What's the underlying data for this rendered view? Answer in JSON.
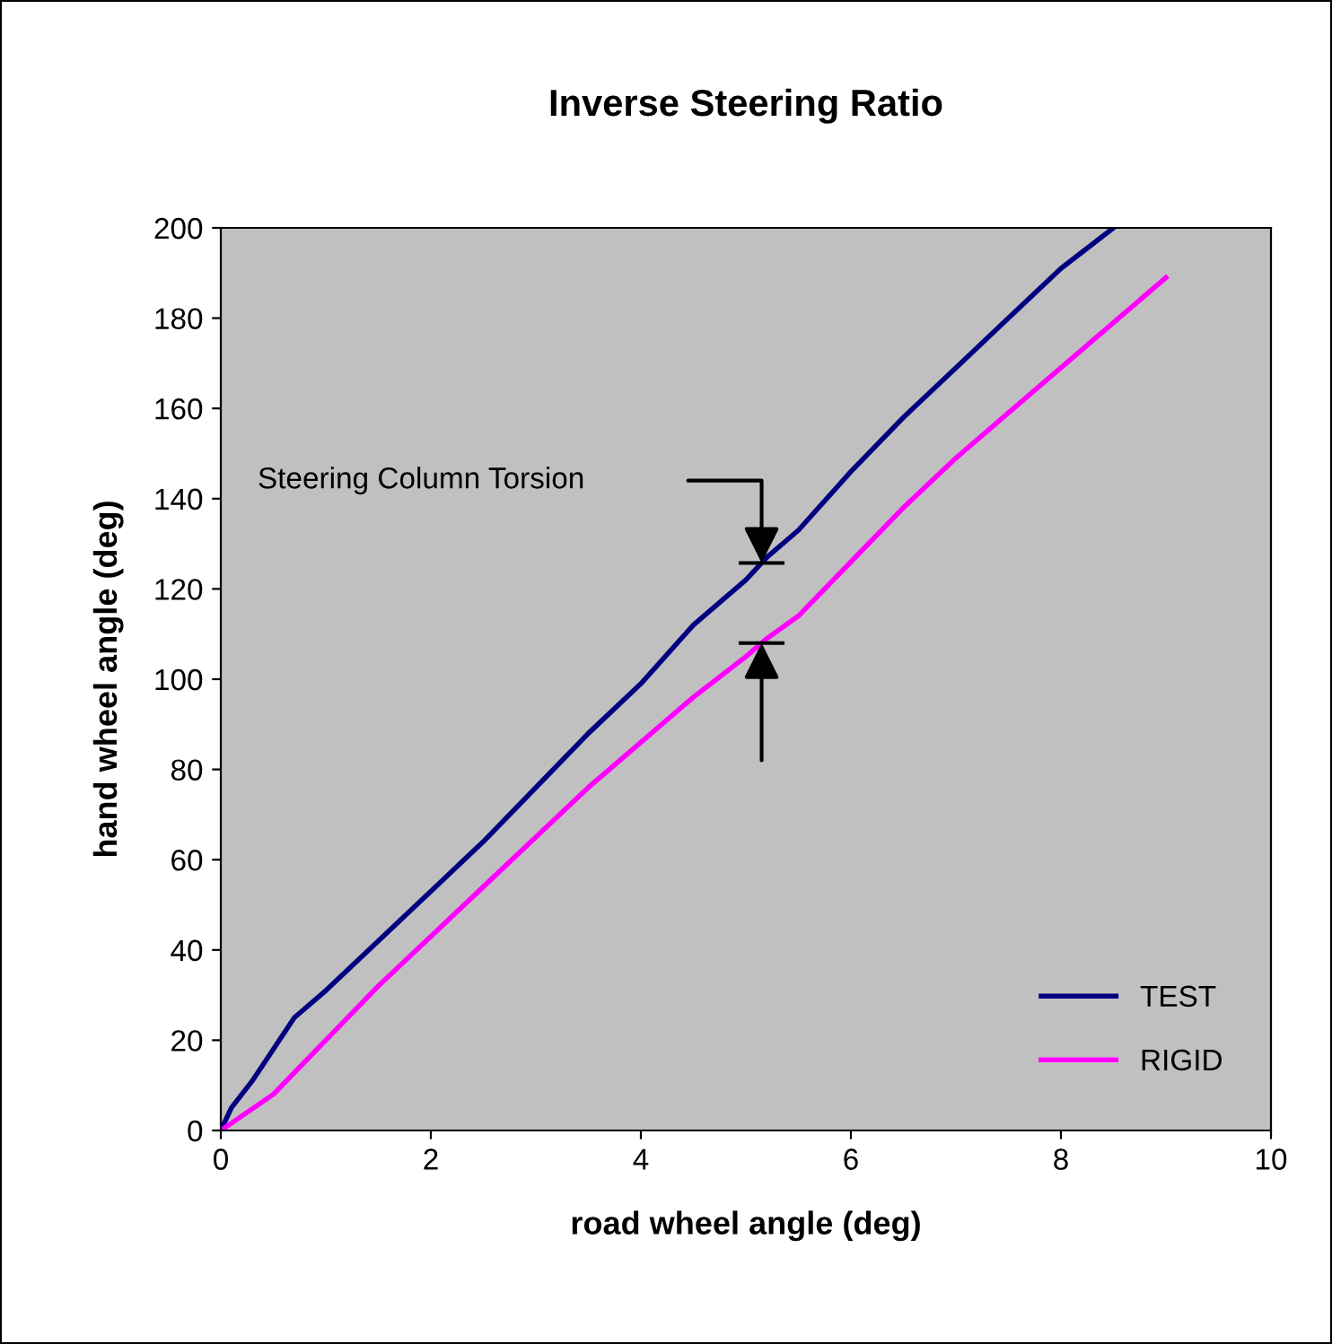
{
  "chart_data": {
    "type": "line",
    "title": "Inverse Steering Ratio",
    "xlabel": "road wheel angle (deg)",
    "ylabel": "hand wheel angle (deg)",
    "xlim": [
      0,
      10
    ],
    "ylim": [
      0,
      200
    ],
    "xticks": [
      0,
      2,
      4,
      6,
      8,
      10
    ],
    "yticks": [
      0,
      20,
      40,
      60,
      80,
      100,
      120,
      140,
      160,
      180,
      200
    ],
    "grid": false,
    "legend": "bottom right",
    "series": [
      {
        "name": "TEST",
        "color": "#000080",
        "x": [
          0,
          0.1,
          0.3,
          0.5,
          0.7,
          1,
          1.5,
          2,
          2.5,
          3,
          3.5,
          4,
          4.5,
          5,
          5.2,
          5.5,
          6,
          6.5,
          7,
          7.5,
          8,
          8.5
        ],
        "values": [
          0,
          5,
          11,
          18,
          25,
          31,
          42,
          53,
          64,
          76,
          88,
          99,
          112,
          122,
          127,
          133,
          146,
          158,
          169,
          180,
          191,
          200
        ]
      },
      {
        "name": "RIGID",
        "color": "#ff00ff",
        "x": [
          0,
          0.5,
          1,
          1.5,
          2,
          2.5,
          3,
          3.5,
          4,
          4.5,
          5,
          5.2,
          5.5,
          6,
          6.5,
          7,
          7.5,
          8,
          8.5,
          9
        ],
        "values": [
          0,
          8,
          20,
          32,
          43,
          54,
          65,
          76,
          86,
          96,
          105,
          109,
          114,
          126,
          138,
          149,
          159,
          169,
          179,
          189
        ]
      }
    ],
    "annotations": [
      "Steering Column Torsion"
    ]
  }
}
